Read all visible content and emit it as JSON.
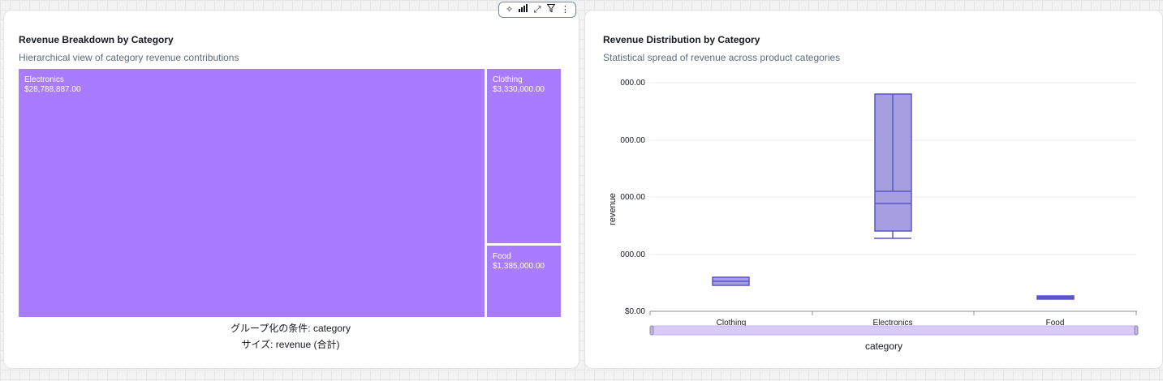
{
  "treemap_panel": {
    "title": "Revenue Breakdown by Category",
    "subtitle": "Hierarchical view of category revenue contributions",
    "group_by_label": "グループ化の条件: category",
    "size_label": "サイズ: revenue (合計)",
    "toolbar_icons": [
      "sparkle-icon",
      "chart-type-icon",
      "expand-icon",
      "filter-icon",
      "more-options-icon"
    ]
  },
  "boxplot_panel": {
    "title": "Revenue Distribution by Category",
    "subtitle": "Statistical spread of revenue across product categories"
  },
  "colors": {
    "treemap_fill": "#a97bff",
    "box_fill": "#a59fe0",
    "box_stroke": "#5b55c9",
    "scrollbar": "#d9cbf7"
  },
  "chart_data": [
    {
      "type": "treemap",
      "title": "Revenue Breakdown by Category",
      "subtitle": "Hierarchical view of category revenue contributions",
      "categories": [
        "Electronics",
        "Clothing",
        "Food"
      ],
      "values": [
        28788887,
        3330000,
        1385000
      ],
      "value_labels": [
        "$28,788,887.00",
        "$3,330,000.00",
        "$1,385,000.00"
      ]
    },
    {
      "type": "box",
      "title": "Revenue Distribution by Category",
      "subtitle": "Statistical spread of revenue across product categories",
      "xlabel": "category",
      "ylabel": "revenue",
      "y_tick_labels": [
        "$0.00",
        "000.00",
        "000.00",
        "000.00",
        "000.00"
      ],
      "categories": [
        "Clothing",
        "Electronics",
        "Food"
      ],
      "grid": true
    }
  ]
}
